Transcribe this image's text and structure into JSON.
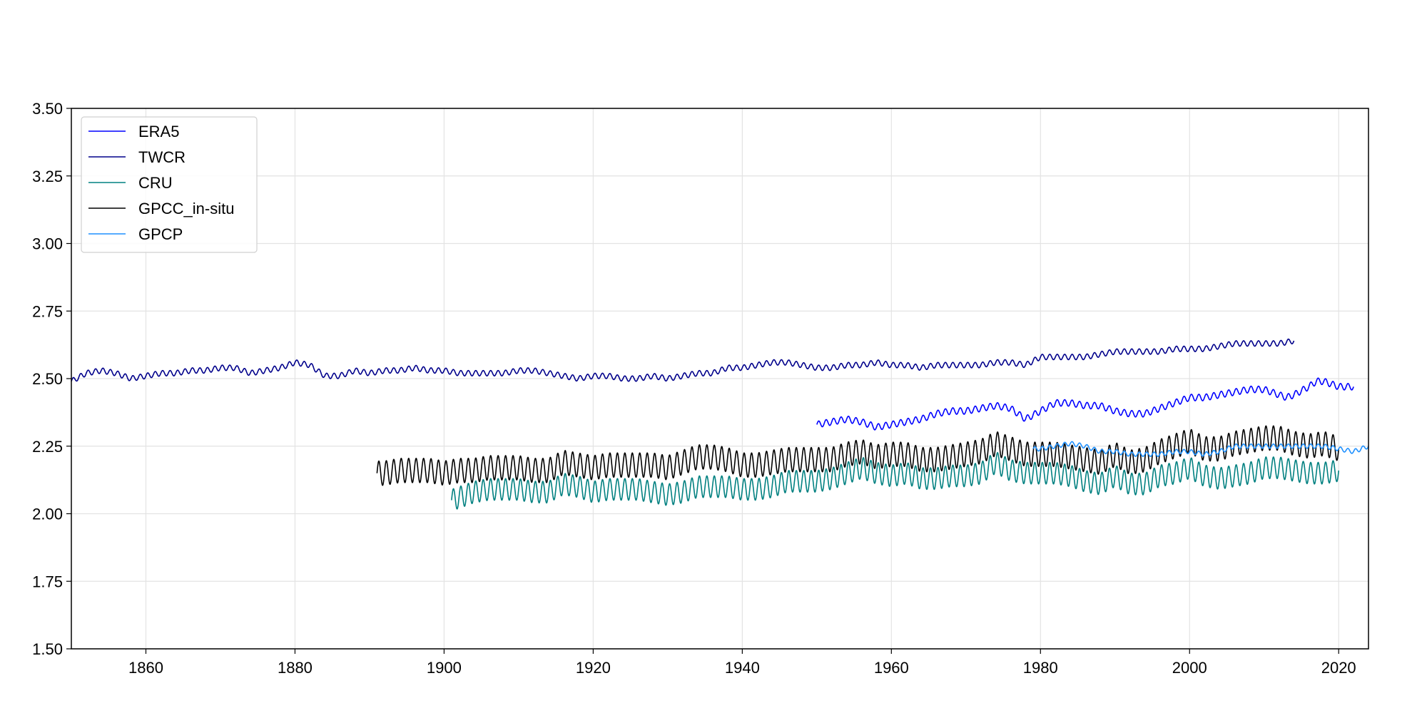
{
  "chart_data": {
    "type": "line",
    "title": "",
    "xlabel": "",
    "ylabel": "",
    "xlim": [
      1850,
      2024
    ],
    "ylim": [
      1.5,
      3.5
    ],
    "xticks": [
      1860,
      1880,
      1900,
      1920,
      1940,
      1960,
      1980,
      2000,
      2020
    ],
    "xtick_labels": [
      "1860",
      "1880",
      "1900",
      "1920",
      "1940",
      "1960",
      "1980",
      "2000",
      "2020"
    ],
    "yticks": [
      1.5,
      1.75,
      2.0,
      2.25,
      2.5,
      2.75,
      3.0,
      3.25,
      3.5
    ],
    "ytick_labels": [
      "1.50",
      "1.75",
      "2.00",
      "2.25",
      "2.50",
      "2.75",
      "3.00",
      "3.25",
      "3.50"
    ],
    "grid": true,
    "legend_position": "top-left",
    "series": [
      {
        "name": "ERA5",
        "color": "#0000ff",
        "cycle_amplitude": 0.012,
        "x": [
          1950,
          1952,
          1954,
          1956,
          1958,
          1960,
          1962,
          1964,
          1966,
          1968,
          1970,
          1972,
          1974,
          1976,
          1977,
          1978,
          1980,
          1982,
          1984,
          1986,
          1988,
          1990,
          1992,
          1994,
          1996,
          1998,
          2000,
          2002,
          2004,
          2006,
          2008,
          2010,
          2012,
          2013,
          2014,
          2016,
          2017,
          2018,
          2020,
          2022
        ],
        "y": [
          2.33,
          2.34,
          2.35,
          2.34,
          2.32,
          2.33,
          2.34,
          2.35,
          2.37,
          2.38,
          2.38,
          2.39,
          2.4,
          2.39,
          2.37,
          2.35,
          2.38,
          2.41,
          2.41,
          2.4,
          2.4,
          2.38,
          2.37,
          2.37,
          2.39,
          2.41,
          2.43,
          2.43,
          2.44,
          2.45,
          2.46,
          2.46,
          2.44,
          2.43,
          2.44,
          2.47,
          2.49,
          2.49,
          2.47,
          2.47
        ]
      },
      {
        "name": "TWCR",
        "color": "#00008b",
        "cycle_amplitude": 0.01,
        "x": [
          1850,
          1852,
          1854,
          1856,
          1858,
          1860,
          1862,
          1864,
          1866,
          1868,
          1870,
          1872,
          1874,
          1876,
          1878,
          1880,
          1882,
          1884,
          1886,
          1888,
          1890,
          1892,
          1894,
          1896,
          1898,
          1900,
          1902,
          1904,
          1906,
          1908,
          1910,
          1912,
          1914,
          1916,
          1918,
          1920,
          1922,
          1924,
          1926,
          1928,
          1930,
          1932,
          1934,
          1936,
          1938,
          1940,
          1942,
          1944,
          1946,
          1948,
          1950,
          1952,
          1954,
          1956,
          1958,
          1960,
          1962,
          1964,
          1966,
          1968,
          1970,
          1972,
          1974,
          1976,
          1978,
          1980,
          1982,
          1984,
          1986,
          1988,
          1990,
          1992,
          1994,
          1996,
          1998,
          2000,
          2002,
          2004,
          2006,
          2008,
          2010,
          2012,
          2014
        ],
        "y": [
          2.49,
          2.52,
          2.53,
          2.52,
          2.5,
          2.51,
          2.52,
          2.52,
          2.53,
          2.53,
          2.54,
          2.54,
          2.52,
          2.53,
          2.54,
          2.56,
          2.55,
          2.51,
          2.51,
          2.53,
          2.52,
          2.53,
          2.53,
          2.54,
          2.53,
          2.53,
          2.52,
          2.52,
          2.52,
          2.52,
          2.53,
          2.53,
          2.52,
          2.51,
          2.5,
          2.51,
          2.51,
          2.5,
          2.5,
          2.51,
          2.5,
          2.51,
          2.52,
          2.52,
          2.54,
          2.54,
          2.55,
          2.56,
          2.56,
          2.55,
          2.54,
          2.54,
          2.55,
          2.55,
          2.56,
          2.55,
          2.55,
          2.54,
          2.55,
          2.55,
          2.55,
          2.55,
          2.56,
          2.56,
          2.55,
          2.58,
          2.58,
          2.58,
          2.58,
          2.59,
          2.6,
          2.6,
          2.6,
          2.6,
          2.61,
          2.61,
          2.61,
          2.62,
          2.63,
          2.63,
          2.63,
          2.63,
          2.64
        ]
      },
      {
        "name": "CRU",
        "color": "#008080",
        "cycle_amplitude": 0.04,
        "x": [
          1901,
          1902,
          1904,
          1906,
          1908,
          1910,
          1912,
          1914,
          1916,
          1918,
          1920,
          1922,
          1924,
          1926,
          1928,
          1930,
          1932,
          1934,
          1936,
          1938,
          1940,
          1942,
          1944,
          1946,
          1948,
          1950,
          1952,
          1954,
          1956,
          1958,
          1960,
          1962,
          1964,
          1966,
          1968,
          1970,
          1972,
          1974,
          1976,
          1978,
          1980,
          1982,
          1984,
          1986,
          1988,
          1990,
          1992,
          1994,
          1996,
          1998,
          2000,
          2002,
          2004,
          2006,
          2008,
          2010,
          2012,
          2014,
          2016,
          2018,
          2020
        ],
        "y": [
          2.05,
          2.06,
          2.08,
          2.09,
          2.09,
          2.09,
          2.08,
          2.08,
          2.11,
          2.1,
          2.08,
          2.09,
          2.09,
          2.09,
          2.08,
          2.07,
          2.08,
          2.1,
          2.1,
          2.1,
          2.09,
          2.09,
          2.1,
          2.12,
          2.12,
          2.12,
          2.13,
          2.15,
          2.17,
          2.15,
          2.14,
          2.15,
          2.13,
          2.13,
          2.14,
          2.14,
          2.15,
          2.19,
          2.16,
          2.15,
          2.15,
          2.15,
          2.14,
          2.12,
          2.11,
          2.14,
          2.11,
          2.11,
          2.14,
          2.15,
          2.17,
          2.14,
          2.13,
          2.14,
          2.15,
          2.17,
          2.17,
          2.16,
          2.15,
          2.15,
          2.16
        ]
      },
      {
        "name": "GPCC_in-situ",
        "color": "#000000",
        "cycle_amplitude": 0.045,
        "x": [
          1891,
          1892,
          1894,
          1896,
          1898,
          1900,
          1902,
          1904,
          1906,
          1908,
          1910,
          1912,
          1914,
          1916,
          1918,
          1920,
          1922,
          1924,
          1926,
          1928,
          1930,
          1932,
          1934,
          1936,
          1938,
          1940,
          1942,
          1944,
          1946,
          1948,
          1950,
          1952,
          1954,
          1956,
          1958,
          1960,
          1962,
          1964,
          1966,
          1968,
          1970,
          1972,
          1974,
          1976,
          1978,
          1980,
          1982,
          1984,
          1986,
          1988,
          1990,
          1992,
          1994,
          1996,
          1998,
          2000,
          2002,
          2004,
          2006,
          2008,
          2010,
          2012,
          2014,
          2016,
          2018,
          2020
        ],
        "y": [
          2.15,
          2.15,
          2.16,
          2.16,
          2.16,
          2.15,
          2.16,
          2.16,
          2.17,
          2.17,
          2.17,
          2.16,
          2.16,
          2.19,
          2.18,
          2.17,
          2.18,
          2.18,
          2.18,
          2.18,
          2.17,
          2.19,
          2.21,
          2.21,
          2.2,
          2.18,
          2.18,
          2.19,
          2.2,
          2.2,
          2.2,
          2.2,
          2.22,
          2.23,
          2.21,
          2.22,
          2.22,
          2.2,
          2.2,
          2.21,
          2.22,
          2.23,
          2.26,
          2.24,
          2.22,
          2.22,
          2.22,
          2.21,
          2.2,
          2.19,
          2.22,
          2.19,
          2.2,
          2.23,
          2.25,
          2.27,
          2.24,
          2.24,
          2.26,
          2.27,
          2.28,
          2.28,
          2.26,
          2.25,
          2.26,
          2.24
        ]
      },
      {
        "name": "GPCP",
        "color": "#1e90ff",
        "cycle_amplitude": 0.008,
        "x": [
          1979,
          1980,
          1982,
          1984,
          1986,
          1988,
          1990,
          1992,
          1994,
          1996,
          1998,
          2000,
          2002,
          2004,
          2006,
          2008,
          2010,
          2012,
          2014,
          2016,
          2018,
          2020,
          2022,
          2024
        ],
        "y": [
          2.24,
          2.24,
          2.25,
          2.26,
          2.25,
          2.23,
          2.23,
          2.22,
          2.22,
          2.22,
          2.23,
          2.23,
          2.22,
          2.23,
          2.25,
          2.25,
          2.25,
          2.25,
          2.25,
          2.25,
          2.25,
          2.24,
          2.23,
          2.25
        ]
      }
    ]
  }
}
